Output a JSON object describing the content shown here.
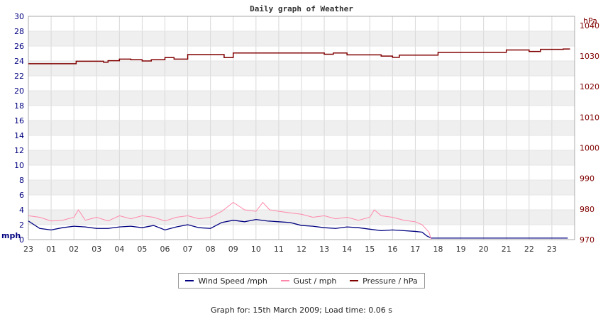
{
  "chart_data": {
    "type": "line",
    "title": "Daily graph of Weather",
    "x_labels": [
      "23",
      "01",
      "02",
      "03",
      "04",
      "05",
      "06",
      "07",
      "08",
      "09",
      "10",
      "11",
      "12",
      "13",
      "14",
      "15",
      "16",
      "17",
      "18",
      "19",
      "20",
      "21",
      "22",
      "23"
    ],
    "y_left": {
      "unit": "mph",
      "ticks": [
        "0",
        "2",
        "4",
        "6",
        "8",
        "10",
        "12",
        "14",
        "16",
        "18",
        "20",
        "22",
        "24",
        "26",
        "28",
        "30"
      ],
      "range": [
        0,
        30
      ]
    },
    "y_right": {
      "unit": "hPa",
      "ticks": [
        "970",
        "980",
        "990",
        "1000",
        "1010",
        "1020",
        "1030",
        "1040"
      ],
      "range": [
        970,
        1043
      ]
    },
    "grid": true,
    "series": [
      {
        "name": "Wind Speed /mph",
        "color": "#000080",
        "axis": "left",
        "x": [
          0,
          0.5,
          1,
          1.5,
          2,
          2.5,
          3,
          3.5,
          4,
          4.5,
          5,
          5.5,
          6,
          6.5,
          7,
          7.5,
          8,
          8.5,
          9,
          9.5,
          10,
          10.5,
          11,
          11.5,
          12,
          12.5,
          13,
          13.5,
          14,
          14.5,
          15,
          15.5,
          16,
          16.5,
          17,
          17.3,
          17.5,
          17.7,
          18,
          19,
          20,
          21,
          22,
          23,
          23.7
        ],
        "values": [
          2.5,
          1.5,
          1.3,
          1.6,
          1.8,
          1.7,
          1.5,
          1.5,
          1.7,
          1.8,
          1.6,
          1.9,
          1.3,
          1.7,
          2.0,
          1.6,
          1.5,
          2.3,
          2.6,
          2.4,
          2.7,
          2.5,
          2.4,
          2.3,
          1.9,
          1.8,
          1.6,
          1.5,
          1.7,
          1.6,
          1.4,
          1.2,
          1.3,
          1.2,
          1.1,
          1.0,
          0.5,
          0.2,
          0.2,
          0.2,
          0.2,
          0.2,
          0.2,
          0.2,
          0.2
        ]
      },
      {
        "name": "Gust / mph",
        "color": "#ff88aa",
        "axis": "left",
        "x": [
          0,
          0.5,
          1,
          1.5,
          2,
          2.2,
          2.5,
          3,
          3.5,
          4,
          4.5,
          5,
          5.5,
          6,
          6.5,
          7,
          7.5,
          8,
          8.5,
          9,
          9.5,
          10,
          10.3,
          10.6,
          11,
          11.5,
          12,
          12.5,
          13,
          13.5,
          14,
          14.5,
          15,
          15.2,
          15.5,
          16,
          16.5,
          17,
          17.3,
          17.6,
          17.7
        ],
        "values": [
          3.2,
          3.0,
          2.5,
          2.6,
          3.0,
          4.0,
          2.6,
          3.0,
          2.5,
          3.2,
          2.8,
          3.2,
          3.0,
          2.5,
          3.0,
          3.2,
          2.8,
          3.0,
          3.8,
          5.0,
          4.0,
          3.8,
          5.0,
          4.0,
          3.8,
          3.6,
          3.4,
          3.0,
          3.2,
          2.8,
          3.0,
          2.6,
          3.0,
          4.0,
          3.2,
          3.0,
          2.6,
          2.4,
          2.0,
          1.0,
          0
        ]
      },
      {
        "name": "Pressure / hPa",
        "color": "#800000",
        "axis": "right",
        "x": [
          0,
          2,
          2.1,
          2.5,
          3.3,
          3.5,
          4,
          4.5,
          5,
          5.4,
          6,
          6.4,
          7,
          7.5,
          8,
          8.6,
          9,
          10,
          11,
          12,
          12.8,
          13,
          13.4,
          14,
          14.5,
          15,
          15.5,
          16,
          16.3,
          16.6,
          17,
          18,
          19,
          20,
          20.5,
          21,
          21.5,
          22,
          22.5,
          23,
          23.5
        ],
        "values": [
          1027.5,
          1027.5,
          1028.3,
          1028.3,
          1028,
          1028.5,
          1029,
          1028.8,
          1028.4,
          1028.8,
          1029.5,
          1029,
          1030.5,
          1030.5,
          1030.5,
          1029.5,
          1031,
          1031,
          1031,
          1031,
          1031,
          1030.6,
          1031,
          1030.4,
          1030.4,
          1030.4,
          1030,
          1029.6,
          1030.3,
          1030.3,
          1030.3,
          1031.2,
          1031.2,
          1031.2,
          1031.2,
          1032,
          1032,
          1031.5,
          1032.2,
          1032.2,
          1032.3
        ]
      }
    ]
  },
  "legend": {
    "wind": "Wind Speed /mph",
    "gust": "Gust / mph",
    "pressure": "Pressure / hPa"
  },
  "footer": "Graph for: 15th March 2009; Load time: 0.06 s"
}
